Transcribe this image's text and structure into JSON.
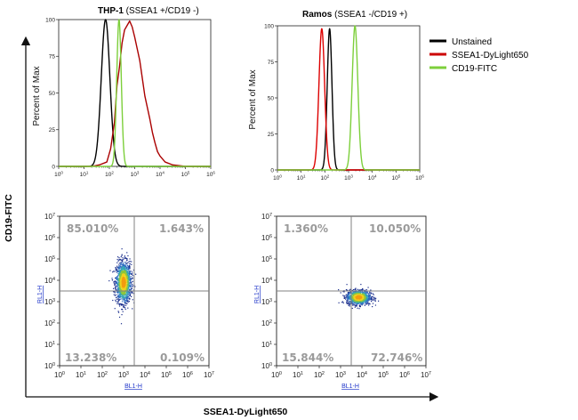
{
  "chart_data": {
    "axes": {
      "x_label": "SSEA1-DyLight650",
      "y_label": "CD19-FITC"
    },
    "legend": {
      "position": "right",
      "entries": [
        {
          "name": "Unstained",
          "color": "#000000"
        },
        {
          "name": "SSEA1-DyLight650",
          "color": "#cc0000"
        },
        {
          "name": "CD19-FITC",
          "color": "#7dcf3b"
        }
      ]
    },
    "panels": [
      {
        "type": "line",
        "title_bold": "THP-1",
        "title_rest": " (SSEA1 +/CD19 -)",
        "ylabel": "Percent of Max",
        "ylim": [
          0,
          100
        ],
        "yticks": [
          "0",
          "25",
          "50",
          "75",
          "100"
        ],
        "xscale": "log",
        "xlim_log10": [
          0,
          6
        ],
        "series": [
          {
            "name": "Unstained",
            "color": "#000000",
            "shape": "peak",
            "center_log10": 1.85,
            "width": 0.17,
            "max": 100
          },
          {
            "name": "SSEA1-DyLight650",
            "color": "#aa0000",
            "shape": "broad",
            "points": [
              [
                1.3,
                0
              ],
              [
                1.6,
                1
              ],
              [
                1.9,
                3
              ],
              [
                2.05,
                12
              ],
              [
                2.2,
                30
              ],
              [
                2.3,
                55
              ],
              [
                2.4,
                68
              ],
              [
                2.5,
                84
              ],
              [
                2.6,
                93
              ],
              [
                2.7,
                96
              ],
              [
                2.8,
                99
              ],
              [
                2.9,
                95
              ],
              [
                3.0,
                88
              ],
              [
                3.1,
                80
              ],
              [
                3.2,
                72
              ],
              [
                3.3,
                60
              ],
              [
                3.4,
                48
              ],
              [
                3.5,
                40
              ],
              [
                3.6,
                32
              ],
              [
                3.7,
                23
              ],
              [
                3.8,
                16
              ],
              [
                3.9,
                10
              ],
              [
                4.0,
                7
              ],
              [
                4.2,
                3
              ],
              [
                4.5,
                1
              ],
              [
                5.0,
                0
              ]
            ]
          },
          {
            "name": "CD19-FITC",
            "color": "#7dcf3b",
            "shape": "peak",
            "center_log10": 2.38,
            "width": 0.09,
            "max": 100
          }
        ]
      },
      {
        "type": "line",
        "title_bold": "Ramos",
        "title_rest": " (SSEA1 -/CD19 +)",
        "ylabel": "Percent of Max",
        "ylim": [
          0,
          100
        ],
        "yticks": [
          "0",
          "25",
          "50",
          "75",
          "100"
        ],
        "xscale": "log",
        "xlim_log10": [
          0,
          6
        ],
        "series": [
          {
            "name": "Unstained",
            "color": "#000000",
            "shape": "peak",
            "center_log10": 2.2,
            "width": 0.1,
            "max": 98
          },
          {
            "name": "SSEA1-DyLight650",
            "color": "#dd0000",
            "shape": "peak",
            "center_log10": 1.87,
            "width": 0.12,
            "max": 98
          },
          {
            "name": "CD19-FITC",
            "color": "#7dcf3b",
            "shape": "peak",
            "center_log10": 3.27,
            "width": 0.12,
            "max": 100
          }
        ]
      },
      {
        "type": "scatter",
        "xlabel": "BL1-H",
        "ylabel": "RL1-H",
        "xscale": "log",
        "yscale": "log",
        "xlim_log10": [
          0,
          7
        ],
        "ylim_log10": [
          0,
          7
        ],
        "gate_log10": [
          3.5,
          3.5
        ],
        "quadrants": {
          "upper_left": "85.010%",
          "upper_right": "1.643%",
          "lower_left": "13.238%",
          "lower_right": "0.109%"
        },
        "population": {
          "center_log10": [
            3.0,
            3.9
          ],
          "spread_log10": [
            0.18,
            0.48
          ],
          "count": 1400
        }
      },
      {
        "type": "scatter",
        "xlabel": "BL1-H",
        "ylabel": "RL1-H",
        "xscale": "log",
        "yscale": "log",
        "xlim_log10": [
          0,
          7
        ],
        "ylim_log10": [
          0,
          7
        ],
        "gate_log10": [
          3.5,
          3.5
        ],
        "quadrants": {
          "upper_left": "1.360%",
          "upper_right": "10.050%",
          "lower_left": "15.844%",
          "lower_right": "72.746%"
        },
        "population": {
          "center_log10": [
            3.85,
            3.2
          ],
          "spread_log10": [
            0.28,
            0.17
          ],
          "count": 1100
        }
      }
    ]
  },
  "colors": {
    "axis": "#222222",
    "gate": "#808080",
    "quadrant_text": "#9a9a9a",
    "density": [
      "#1a2e8c",
      "#2c6ac0",
      "#35a6b4",
      "#8cc63e",
      "#f0d21e",
      "#f39c12"
    ]
  }
}
